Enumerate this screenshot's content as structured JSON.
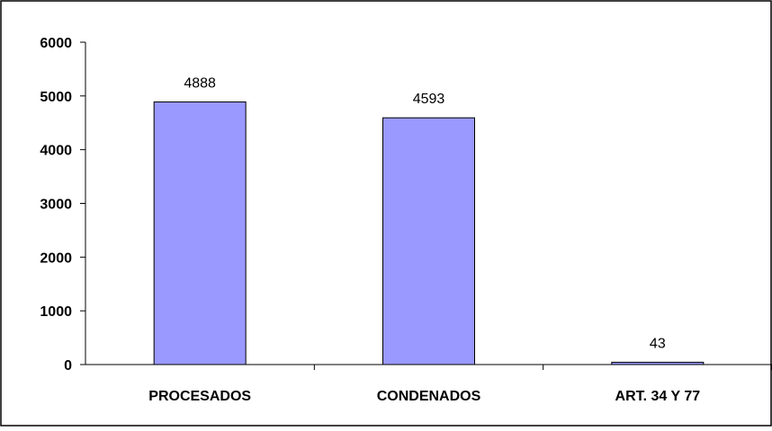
{
  "chart_data": {
    "type": "bar",
    "title": "",
    "xlabel": "",
    "ylabel": "",
    "categories": [
      "PROCESADOS",
      "CONDENADOS",
      "ART. 34 Y 77"
    ],
    "values": [
      4888,
      4593,
      43
    ],
    "data_labels": [
      "4888",
      "4593",
      "43"
    ],
    "ylim": [
      0,
      6000
    ],
    "yticks": [
      0,
      1000,
      2000,
      3000,
      4000,
      5000,
      6000
    ],
    "ytick_labels": [
      "0",
      "1000",
      "2000",
      "3000",
      "4000",
      "5000",
      "6000"
    ],
    "grid": false,
    "legend": "none",
    "colors": {
      "bar_fill": "#9999ff",
      "bar_stroke": "#000000",
      "axis": "#000000",
      "frame": "#000000"
    }
  }
}
